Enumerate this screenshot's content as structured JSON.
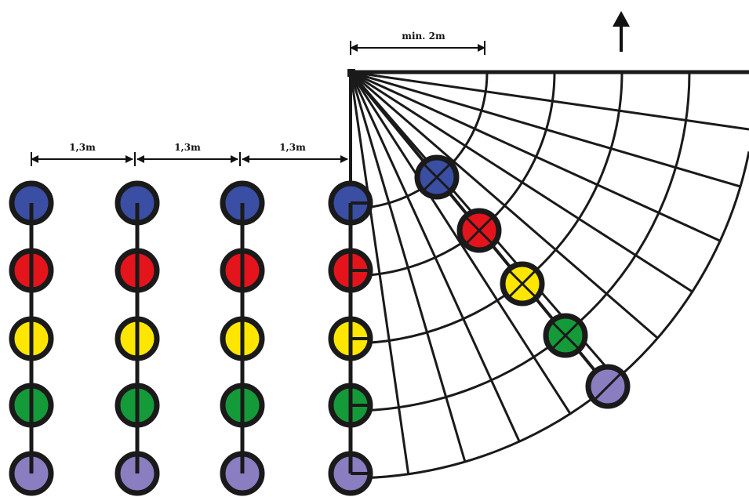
{
  "dimensions": {
    "row_spacing_1": "1,3m",
    "row_spacing_2": "1,3m",
    "row_spacing_3": "1,3m",
    "arc_min_distance": "min. 2m"
  },
  "colors": {
    "blue": "#3a4ea3",
    "red": "#e3141b",
    "yellow": "#ffe600",
    "green": "#159a3a",
    "purple": "#8a7dc0",
    "outline": "#1a1a1a"
  },
  "stations": [
    "blue",
    "red",
    "yellow",
    "green",
    "purple"
  ],
  "icons": {
    "direction": "arrow-up-icon",
    "station_marker": "crossed-circle-icon"
  }
}
